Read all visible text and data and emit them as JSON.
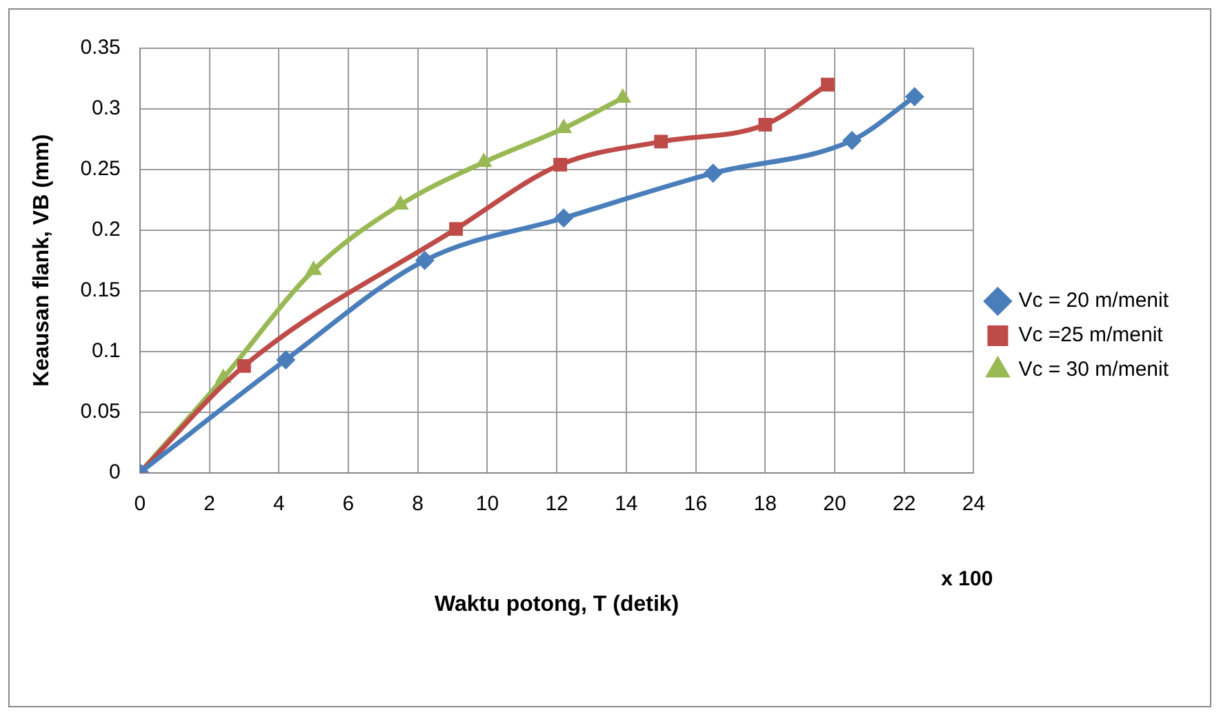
{
  "chart_data": {
    "type": "line",
    "xlabel": "Waktu potong, T (detik)",
    "ylabel": "Keausan flank, VB (mm)",
    "xlim": [
      0,
      24
    ],
    "xticks": [
      0,
      2,
      4,
      6,
      8,
      10,
      12,
      14,
      16,
      18,
      20,
      22,
      24
    ],
    "ylim": [
      0,
      0.35
    ],
    "yticks": [
      0,
      0.05,
      0.1,
      0.15,
      0.2,
      0.25,
      0.3,
      0.35
    ],
    "grid": true,
    "legend": "right",
    "annotations": [
      "x 100"
    ],
    "series": [
      {
        "name": "Vc = 20 m/menit",
        "color": "#4a7ebb",
        "marker": "diamond",
        "x": [
          0,
          4.2,
          8.2,
          12.2,
          16.5,
          20.5,
          22.3
        ],
        "values": [
          0,
          0.093,
          0.175,
          0.21,
          0.247,
          0.274,
          0.31
        ]
      },
      {
        "name": "Vc =25 m/menit",
        "color": "#be4b48",
        "marker": "square",
        "x": [
          0,
          3.0,
          9.1,
          12.1,
          15.0,
          18.0,
          19.8
        ],
        "values": [
          0,
          0.088,
          0.201,
          0.254,
          0.273,
          0.287,
          0.32
        ]
      },
      {
        "name": "Vc = 30 m/menit",
        "color": "#98b954",
        "marker": "triangle",
        "x": [
          0,
          2.4,
          5.0,
          7.5,
          9.9,
          12.2,
          13.9
        ],
        "values": [
          0,
          0.078,
          0.167,
          0.221,
          0.256,
          0.284,
          0.309
        ]
      }
    ]
  }
}
